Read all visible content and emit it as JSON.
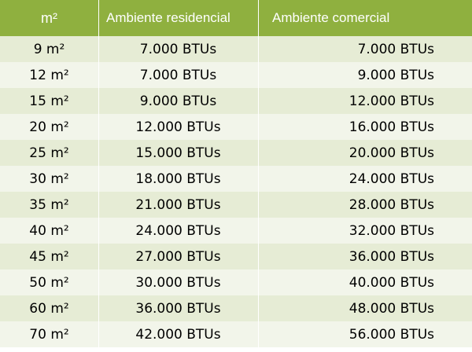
{
  "table": {
    "headers": [
      "m²",
      "Ambiente residencial",
      "Ambiente comercial"
    ],
    "rows": [
      [
        "9 m²",
        "7.000 BTUs",
        "7.000 BTUs"
      ],
      [
        "12 m²",
        "7.000 BTUs",
        "9.000 BTUs"
      ],
      [
        "15 m²",
        "9.000 BTUs",
        "12.000 BTUs"
      ],
      [
        "20 m²",
        "12.000 BTUs",
        "16.000 BTUs"
      ],
      [
        "25 m²",
        "15.000 BTUs",
        "20.000 BTUs"
      ],
      [
        "30 m²",
        "18.000 BTUs",
        "24.000 BTUs"
      ],
      [
        "35 m²",
        "21.000 BTUs",
        "28.000 BTUs"
      ],
      [
        "40 m²",
        "24.000 BTUs",
        "32.000 BTUs"
      ],
      [
        "45 m²",
        "27.000 BTUs",
        "36.000 BTUs"
      ],
      [
        "50 m²",
        "30.000 BTUs",
        "40.000 BTUs"
      ],
      [
        "60 m²",
        "36.000 BTUs",
        "48.000 BTUs"
      ],
      [
        "70 m²",
        "42.000 BTUs",
        "56.000 BTUs"
      ]
    ]
  },
  "colors": {
    "header_bg": "#8fb03f",
    "header_text": "#ffffff",
    "row_odd": "#e6ecd5",
    "row_even": "#f2f5ea"
  }
}
